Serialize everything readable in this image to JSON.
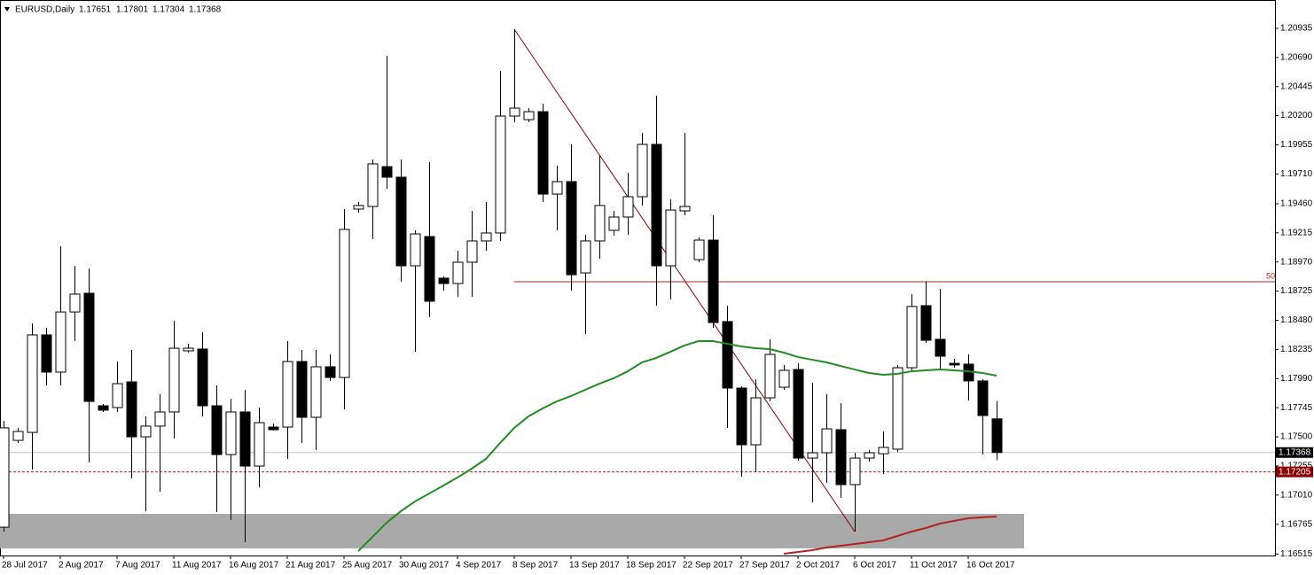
{
  "chart_data": {
    "type": "candlestick",
    "title": "EURUSD,Daily",
    "categories": [
      "28 Jul 2017",
      null,
      null,
      null,
      "2 Aug 2017",
      null,
      null,
      null,
      "7 Aug 2017",
      null,
      null,
      null,
      "11 Aug 2017",
      null,
      null,
      null,
      "16 Aug 2017",
      null,
      null,
      null,
      "21 Aug 2017",
      null,
      null,
      null,
      "25 Aug 2017",
      null,
      null,
      null,
      "30 Aug 2017",
      null,
      null,
      null,
      "4 Sep 2017",
      null,
      null,
      null,
      "8 Sep 2017",
      null,
      null,
      null,
      "13 Sep 2017",
      null,
      null,
      null,
      "18 Sep 2017",
      null,
      null,
      null,
      "22 Sep 2017",
      null,
      null,
      null,
      "27 Sep 2017",
      null,
      null,
      null,
      "2 Oct 2017",
      null,
      null,
      null,
      "6 Oct 2017",
      null,
      null,
      null,
      "11 Oct 2017",
      null,
      null,
      null,
      "16 Oct 2017",
      null,
      null
    ],
    "ohlc": {
      "open": [
        1.1674,
        1.1747,
        1.17537,
        1.18357,
        1.18044,
        1.1855,
        1.18707,
        1.17761,
        1.17746,
        1.17962,
        1.175,
        1.1759,
        1.17709,
        1.18223,
        1.18238,
        1.17761,
        1.17351,
        1.17709,
        1.17254,
        1.17582,
        1.17582,
        1.18133,
        1.17664,
        1.18089,
        1.17999,
        1.19415,
        1.19437,
        1.19772,
        1.19683,
        1.18938,
        1.19184,
        1.18834,
        1.18789,
        1.18968,
        1.19147,
        1.19214,
        1.20197,
        1.20167,
        1.20234,
        1.19541,
        1.19646,
        1.18878,
        1.19147,
        1.19236,
        1.19348,
        1.19519,
        1.19959,
        1.18938,
        1.194,
        1.1899,
        1.19154,
        1.18469,
        1.1791,
        1.17433,
        1.17828,
        1.17917,
        1.18066,
        1.17321,
        1.17366,
        1.1756,
        1.17098,
        1.17321,
        1.17358,
        1.17396,
        1.18081,
        1.18603,
        1.1832,
        1.18118,
        1.18111,
        1.1797,
        1.17651
      ],
      "high": [
        1.17634,
        1.17575,
        1.18454,
        1.18417,
        1.19102,
        1.18938,
        1.18916,
        1.17776,
        1.18133,
        1.1823,
        1.17672,
        1.17858,
        1.18476,
        1.18283,
        1.18379,
        1.17932,
        1.1782,
        1.17895,
        1.17746,
        1.17612,
        1.18305,
        1.1823,
        1.1823,
        1.18193,
        1.19415,
        1.19474,
        1.19832,
        1.20704,
        1.19832,
        1.19236,
        1.1981,
        1.18849,
        1.19065,
        1.194,
        1.19474,
        1.20577,
        1.20927,
        1.20264,
        1.20301,
        1.1978,
        1.19959,
        1.19199,
        1.19869,
        1.194,
        1.1972,
        1.20056,
        1.20368,
        1.19497,
        1.20056,
        1.19177,
        1.19363,
        1.18603,
        1.17925,
        1.17984,
        1.1832,
        1.18104,
        1.18118,
        1.17955,
        1.17858,
        1.17783,
        1.17366,
        1.17388,
        1.17545,
        1.18104,
        1.187,
        1.18804,
        1.18744,
        1.18156,
        1.18193,
        1.17984,
        1.17801
      ],
      "low": [
        1.16703,
        1.17448,
        1.17224,
        1.17932,
        1.17932,
        1.18305,
        1.17284,
        1.17709,
        1.17709,
        1.1715,
        1.16874,
        1.17038,
        1.17485,
        1.18208,
        1.17672,
        1.16867,
        1.168,
        1.16614,
        1.17075,
        1.17552,
        1.17314,
        1.17448,
        1.17388,
        1.1797,
        1.17731,
        1.19385,
        1.19162,
        1.19586,
        1.18804,
        1.18215,
        1.18506,
        1.18729,
        1.18677,
        1.18677,
        1.19065,
        1.19147,
        1.20145,
        1.20145,
        1.19474,
        1.19236,
        1.18729,
        1.18364,
        1.18997,
        1.19191,
        1.19199,
        1.19445,
        1.18603,
        1.18655,
        1.19363,
        1.18968,
        1.18417,
        1.17575,
        1.17165,
        1.17202,
        1.17798,
        1.17895,
        1.17299,
        1.16949,
        1.17113,
        1.16986,
        1.16703,
        1.17291,
        1.17187,
        1.17373,
        1.18059,
        1.1829,
        1.18059,
        1.18081,
        1.17806,
        1.17351,
        1.17304
      ],
      "close": [
        1.17575,
        1.17545,
        1.18357,
        1.18044,
        1.1855,
        1.187,
        1.17798,
        1.17724,
        1.17947,
        1.175,
        1.1759,
        1.17709,
        1.18245,
        1.18245,
        1.17761,
        1.17351,
        1.17709,
        1.17254,
        1.17619,
        1.1756,
        1.18133,
        1.17664,
        1.18089,
        1.17999,
        1.19244,
        1.19445,
        1.19795,
        1.19683,
        1.18938,
        1.19206,
        1.1864,
        1.18789,
        1.18968,
        1.19147,
        1.19214,
        1.20197,
        1.20264,
        1.20234,
        1.19541,
        1.19646,
        1.18863,
        1.19147,
        1.19445,
        1.19348,
        1.19519,
        1.19959,
        1.18938,
        1.19407,
        1.19437,
        1.19154,
        1.18461,
        1.1791,
        1.17433,
        1.17828,
        1.18193,
        1.18059,
        1.17321,
        1.17366,
        1.17567,
        1.17098,
        1.17321,
        1.17366,
        1.17411,
        1.18081,
        1.18596,
        1.18312,
        1.18178,
        1.18104,
        1.1797,
        1.17679,
        1.17368
      ]
    },
    "up_color": "#ffffff",
    "down_color": "#000000",
    "overlays": [
      {
        "color": "#228b22",
        "values": [
          null,
          null,
          null,
          null,
          null,
          null,
          null,
          null,
          null,
          null,
          null,
          null,
          null,
          null,
          null,
          null,
          null,
          null,
          null,
          null,
          null,
          null,
          null,
          null,
          null,
          1.16539,
          1.16658,
          1.16778,
          1.16874,
          1.16956,
          1.17023,
          1.1709,
          1.17158,
          1.17232,
          1.17314,
          1.17448,
          1.17575,
          1.17672,
          1.17739,
          1.17798,
          1.17843,
          1.17895,
          1.17947,
          1.17992,
          1.18051,
          1.18126,
          1.18163,
          1.18215,
          1.18268,
          1.18305,
          1.18305,
          1.18283,
          1.1826,
          1.18245,
          1.18238,
          1.18208,
          1.18171,
          1.18148,
          1.18126,
          1.18096,
          1.18066,
          1.18037,
          1.18022,
          1.18029,
          1.18051,
          1.18059,
          1.18066,
          1.18059,
          1.18051,
          1.18037,
          1.18014
        ]
      },
      {
        "color": "#b22222",
        "values": [
          null,
          null,
          null,
          null,
          null,
          null,
          null,
          null,
          null,
          null,
          null,
          null,
          null,
          null,
          null,
          null,
          null,
          null,
          null,
          null,
          null,
          null,
          null,
          null,
          null,
          null,
          null,
          null,
          null,
          null,
          null,
          null,
          null,
          null,
          null,
          null,
          null,
          null,
          null,
          null,
          null,
          null,
          null,
          null,
          null,
          null,
          null,
          null,
          null,
          null,
          null,
          null,
          null,
          null,
          null,
          1.16517,
          1.16532,
          1.16547,
          1.16569,
          1.16584,
          1.16599,
          1.16614,
          1.16629,
          1.16666,
          1.16703,
          1.16733,
          1.1677,
          1.16793,
          1.16815,
          1.16823,
          1.1683
        ]
      }
    ],
    "zone": {
      "from": 1.16562,
      "to": 1.16852,
      "color": "#a9a9a9"
    },
    "trendline": {
      "x": [
        36,
        60
      ],
      "values": [
        1.20927,
        1.16703
      ],
      "color": "#8b0000"
    },
    "fib_level": {
      "label": "50",
      "value": 1.18804,
      "x": 36,
      "color": "#b22222"
    },
    "bid_line": 1.17368,
    "level_line": 1.17205,
    "ylim": [
      1.16502,
      1.21173
    ],
    "yticks": [
      1.20935,
      {
        "value": 1.2069,
        "label": "1.20690"
      },
      1.20445,
      {
        "value": 1.202,
        "label": "1.20200"
      },
      1.19955,
      {
        "value": 1.1971,
        "label": "1.19710"
      },
      {
        "value": 1.1946,
        "label": "1.19460"
      },
      1.19215,
      {
        "value": 1.1897,
        "label": "1.18970"
      },
      1.18725,
      {
        "value": 1.1848,
        "label": "1.18480"
      },
      1.18235,
      {
        "value": 1.1799,
        "label": "1.17990"
      },
      1.17745,
      {
        "value": 1.175,
        "label": "1.17500"
      },
      1.17255,
      {
        "value": 1.1701,
        "label": "1.17010"
      },
      1.16765,
      1.16515
    ],
    "grid": false
  }
}
